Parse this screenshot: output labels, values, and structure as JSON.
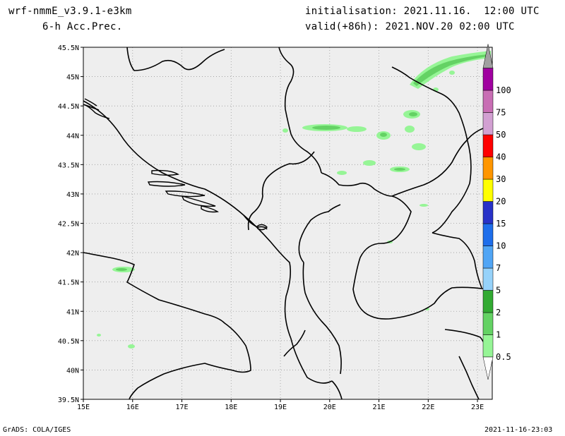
{
  "header": {
    "model": "wrf-nmmE_v3.9.1-e3km",
    "field": "6-h Acc.Prec.",
    "init": "initialisation: 2021.11.16.  12:00 UTC",
    "valid": "valid(+86h): 2021.NOV.20 02:00 UTC"
  },
  "footer": {
    "left": "GrADS: COLA/IGES",
    "right": "2021-11-16-23:03"
  },
  "map": {
    "lon_range": [
      15,
      23.3
    ],
    "lat_range": [
      39.5,
      45.5
    ],
    "lon_ticks": [
      "15E",
      "16E",
      "17E",
      "18E",
      "19E",
      "20E",
      "21E",
      "22E",
      "23E"
    ],
    "lat_ticks": [
      "39.5N",
      "40N",
      "40.5N",
      "41N",
      "41.5N",
      "42N",
      "42.5N",
      "43N",
      "43.5N",
      "44N",
      "44.5N",
      "45N",
      "45.5N"
    ],
    "background": "#eeeeee",
    "grid": "dotted"
  },
  "colorbar": {
    "levels": [
      "0.5",
      "1",
      "2",
      "5",
      "7",
      "10",
      "15",
      "20",
      "30",
      "40",
      "50",
      "75",
      "100"
    ],
    "colors": [
      "#96f596",
      "#64d264",
      "#32aa32",
      "#96d2fa",
      "#50a5f5",
      "#1e6eeb",
      "#2832c8",
      "#ffff00",
      "#ff9600",
      "#ff0000",
      "#d2a0d2",
      "#c86eb4",
      "#a000a0",
      "#a0a0a0"
    ]
  }
}
